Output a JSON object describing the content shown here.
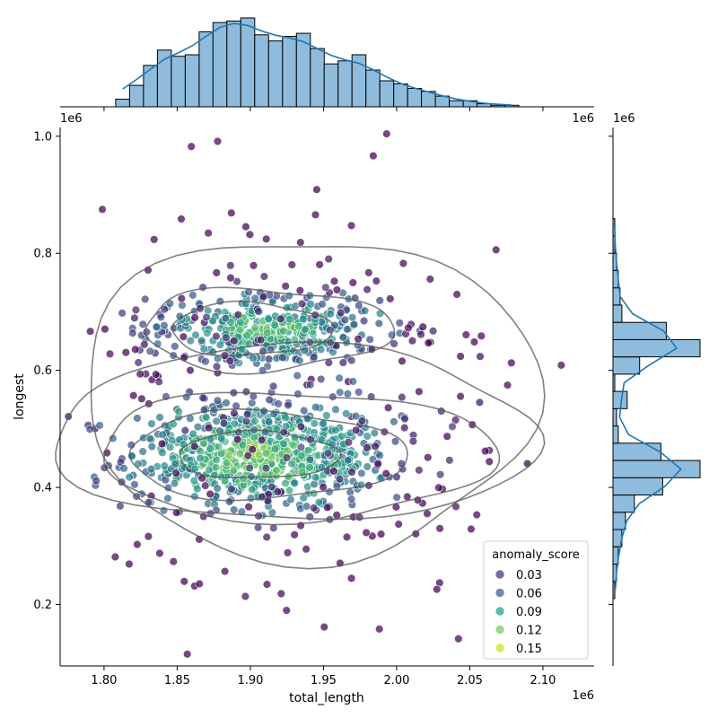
{
  "chart_data": {
    "type": "scatter",
    "xlabel": "total_length",
    "ylabel": "longest",
    "x_offset_label": "1e6",
    "y_offset_label": "1e6",
    "xlim": [
      1.77,
      2.135
    ],
    "ylim": [
      0.095,
      1.015
    ],
    "x_ticks": [
      "1.80",
      "1.85",
      "1.90",
      "1.95",
      "2.00",
      "2.05",
      "2.10"
    ],
    "y_ticks": [
      "0.2",
      "0.4",
      "0.6",
      "0.8",
      "1.0"
    ],
    "legend": {
      "title": "anomaly_score",
      "position": "lower-right",
      "entries": [
        {
          "label": "0.03",
          "color": "#46337e"
        },
        {
          "label": "0.06",
          "color": "#365c8d"
        },
        {
          "label": "0.09",
          "color": "#1fa187"
        },
        {
          "label": "0.12",
          "color": "#6ece58"
        },
        {
          "label": "0.15",
          "color": "#c8e020"
        }
      ]
    },
    "clusters": [
      {
        "cx": 1.905,
        "cy": 0.455,
        "sx": 0.045,
        "sy": 0.045,
        "n": 720,
        "score_center": 0.135
      },
      {
        "cx": 1.91,
        "cy": 0.67,
        "sx": 0.04,
        "sy": 0.032,
        "n": 380,
        "score_center": 0.125
      },
      {
        "cx": 1.94,
        "cy": 0.56,
        "sx": 0.07,
        "sy": 0.17,
        "n": 260,
        "score_center": 0.06
      }
    ],
    "top_hist": {
      "bin_start": 1.808,
      "bin_width": 0.0095,
      "counts": [
        5,
        14,
        27,
        37,
        33,
        34,
        49,
        55,
        56,
        58,
        47,
        43,
        46,
        48,
        38,
        28,
        30,
        34,
        24,
        17,
        15,
        12,
        10,
        7,
        4,
        4,
        2,
        1,
        1
      ]
    },
    "right_hist": {
      "bin_start": 0.21,
      "bin_width": 0.0295,
      "counts": [
        1,
        2,
        3,
        5,
        7,
        12,
        28,
        49,
        27,
        3,
        2,
        8,
        1,
        15,
        49,
        30,
        5,
        4,
        3,
        2,
        1,
        1
      ]
    }
  }
}
